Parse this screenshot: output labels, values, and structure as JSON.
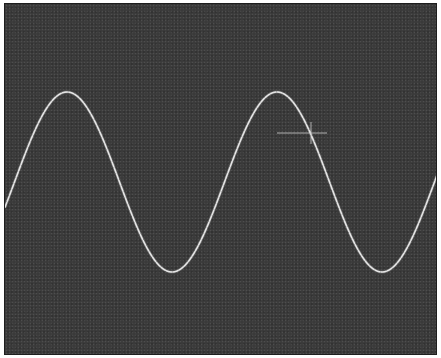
{
  "header": {
    "trigger": "",
    "timebase": "",
    "channel": "",
    "frequency": ""
  },
  "footer": {
    "ch1_scale": "",
    "ch2_scale": "",
    "mode": ""
  },
  "colors": {
    "screen": "#3a3a3a",
    "trace": "#e6e6e6"
  },
  "waveform": {
    "shape": "sine",
    "cycles_visible": 2,
    "icon": "sine-wave-icon"
  }
}
